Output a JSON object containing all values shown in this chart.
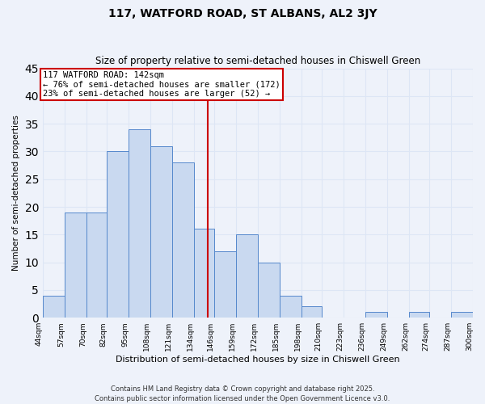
{
  "title": "117, WATFORD ROAD, ST ALBANS, AL2 3JY",
  "subtitle": "Size of property relative to semi-detached houses in Chiswell Green",
  "xlabel": "Distribution of semi-detached houses by size in Chiswell Green",
  "ylabel": "Number of semi-detached properties",
  "bin_edges": [
    44,
    57,
    70,
    82,
    95,
    108,
    121,
    134,
    146,
    159,
    172,
    185,
    198,
    210,
    223,
    236,
    249,
    262,
    274,
    287,
    300
  ],
  "counts": [
    4,
    19,
    19,
    30,
    34,
    31,
    28,
    16,
    12,
    15,
    10,
    4,
    2,
    0,
    0,
    1,
    0,
    1,
    0,
    1
  ],
  "bar_facecolor": "#c9d9f0",
  "bar_edgecolor": "#5588cc",
  "grid_color": "#dde6f5",
  "background_color": "#eef2fa",
  "vline_x": 142,
  "vline_color": "#cc0000",
  "annotation_line1": "117 WATFORD ROAD: 142sqm",
  "annotation_line2": "← 76% of semi-detached houses are smaller (172)",
  "annotation_line3": "23% of semi-detached houses are larger (52) →",
  "ylim": [
    0,
    45
  ],
  "tick_labels": [
    "44sqm",
    "57sqm",
    "70sqm",
    "82sqm",
    "95sqm",
    "108sqm",
    "121sqm",
    "134sqm",
    "146sqm",
    "159sqm",
    "172sqm",
    "185sqm",
    "198sqm",
    "210sqm",
    "223sqm",
    "236sqm",
    "249sqm",
    "262sqm",
    "274sqm",
    "287sqm",
    "300sqm"
  ],
  "footer_text": "Contains HM Land Registry data © Crown copyright and database right 2025.\nContains public sector information licensed under the Open Government Licence v3.0.",
  "title_fontsize": 10,
  "subtitle_fontsize": 8.5,
  "xlabel_fontsize": 8,
  "ylabel_fontsize": 7.5,
  "tick_fontsize": 6.5,
  "annotation_fontsize": 7.5,
  "footer_fontsize": 6
}
